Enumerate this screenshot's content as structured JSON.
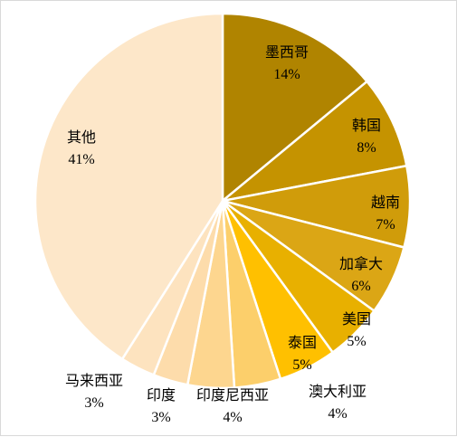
{
  "chart_data": {
    "type": "pie",
    "categories": [
      "墨西哥",
      "韩国",
      "越南",
      "加拿大",
      "美国",
      "泰国",
      "澳大利亚",
      "印度尼西亚",
      "印度",
      "马来西亚",
      "其他"
    ],
    "values": [
      14,
      8,
      7,
      6,
      5,
      5,
      4,
      4,
      3,
      3,
      41
    ],
    "value_labels": [
      "14%",
      "8%",
      "7%",
      "6%",
      "5%",
      "5%",
      "4%",
      "4%",
      "3%",
      "3%",
      "41%"
    ],
    "colors": [
      "#b08400",
      "#c59300",
      "#d09c0a",
      "#dba615",
      "#e8b000",
      "#ffc000",
      "#fccf6b",
      "#fdd68f",
      "#fddcab",
      "#fde3bf",
      "#fde7c9"
    ],
    "start_angle_deg": 0,
    "direction": "clockwise",
    "legend": "none"
  }
}
